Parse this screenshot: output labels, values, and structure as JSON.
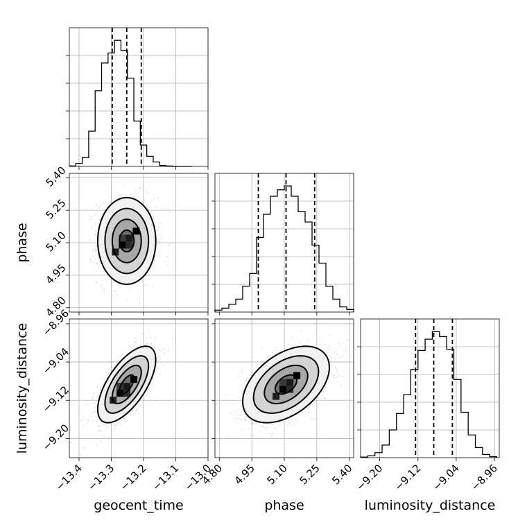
{
  "chart_data": {
    "type": "corner",
    "parameters": [
      {
        "name": "geocent_time",
        "label": "geocent_time",
        "range": [
          -13.43,
          -13.0
        ],
        "ticks": [
          -13.4,
          -13.3,
          -13.2,
          -13.1,
          -13.0
        ],
        "tick_labels": [
          "−13.4",
          "−13.3",
          "−13.2",
          "−13.1",
          "−13.0"
        ],
        "quantiles": [
          -13.297,
          -13.252,
          -13.207
        ],
        "hist_edges": [
          -13.43,
          -13.41,
          -13.39,
          -13.37,
          -13.35,
          -13.33,
          -13.31,
          -13.29,
          -13.27,
          -13.25,
          -13.23,
          -13.21,
          -13.19,
          -13.17,
          -13.15,
          -13.13,
          -13.11,
          -13.09,
          -13.07,
          -13.05
        ],
        "hist_counts": [
          0.4,
          2.4,
          7,
          28,
          60,
          82,
          90,
          100,
          92,
          70,
          36,
          17,
          8,
          3.5,
          0.8,
          0.3,
          0,
          0,
          0
        ]
      },
      {
        "name": "phase",
        "label": "phase",
        "range": [
          4.78,
          5.42
        ],
        "ticks": [
          4.8,
          4.95,
          5.1,
          5.25,
          5.4
        ],
        "tick_labels": [
          "4.80",
          "4.95",
          "5.10",
          "5.25",
          "5.40"
        ],
        "quantiles": [
          4.98,
          5.108,
          5.24
        ],
        "hist_edges": [
          4.78,
          4.812,
          4.844,
          4.876,
          4.908,
          4.94,
          4.972,
          5.004,
          5.036,
          5.068,
          5.1,
          5.132,
          5.164,
          5.196,
          5.228,
          5.26,
          5.292,
          5.324,
          5.356,
          5.388,
          5.42
        ],
        "hist_counts": [
          1.5,
          3,
          6,
          10,
          20,
          30,
          58,
          76,
          90,
          95,
          98,
          90,
          78,
          70,
          52,
          38,
          20,
          10,
          4,
          2
        ]
      },
      {
        "name": "luminosity_distance",
        "label": "luminosity_distance",
        "range": [
          -9.24,
          -8.95
        ],
        "ticks": [
          -9.2,
          -9.12,
          -9.04,
          -8.96
        ],
        "tick_labels": [
          "−9.20",
          "−9.12",
          "−9.04",
          "−8.96"
        ],
        "quantiles": [
          -9.125,
          -9.087,
          -9.048
        ],
        "hist_edges": [
          -9.24,
          -9.225,
          -9.21,
          -9.195,
          -9.18,
          -9.165,
          -9.15,
          -9.135,
          -9.12,
          -9.105,
          -9.09,
          -9.075,
          -9.06,
          -9.045,
          -9.03,
          -9.015,
          -9.0,
          -8.985,
          -8.97,
          -8.955
        ],
        "hist_counts": [
          0.5,
          1.5,
          4,
          10,
          22,
          35,
          50,
          70,
          85,
          94,
          100,
          96,
          86,
          62,
          36,
          18,
          8,
          2.5,
          0.8
        ]
      }
    ],
    "pairs": [
      {
        "x_param": "geocent_time",
        "y_param": "phase",
        "x_mean": -13.252,
        "y_mean": 5.108,
        "x_sd": 0.045,
        "y_sd": 0.1,
        "correlation": 0.0,
        "density_peak": [
          -13.255,
          5.105
        ]
      },
      {
        "x_param": "geocent_time",
        "y_param": "luminosity_distance",
        "x_mean": -13.252,
        "y_mean": -9.087,
        "x_sd": 0.045,
        "y_sd": 0.04,
        "correlation": 0.65,
        "density_peak": [
          -13.262,
          -9.098
        ]
      },
      {
        "x_param": "phase",
        "y_param": "luminosity_distance",
        "x_mean": 5.108,
        "y_mean": -9.087,
        "x_sd": 0.1,
        "y_sd": 0.04,
        "correlation": 0.45,
        "density_peak": [
          5.11,
          -9.09
        ]
      }
    ],
    "contour_levels_sigma": [
      0.5,
      1.0,
      1.5,
      2.0
    ],
    "grid": true,
    "style": {
      "sample_color": "#808080",
      "hist_color": "#000000",
      "contour_line_color": "#000000",
      "contour_fill_colors": [
        "#f2f2f2",
        "#d4d4d4",
        "#a8a8a8",
        "#6e6e6e"
      ],
      "grid_color": "#b0b0b0",
      "background": "#ffffff"
    }
  }
}
